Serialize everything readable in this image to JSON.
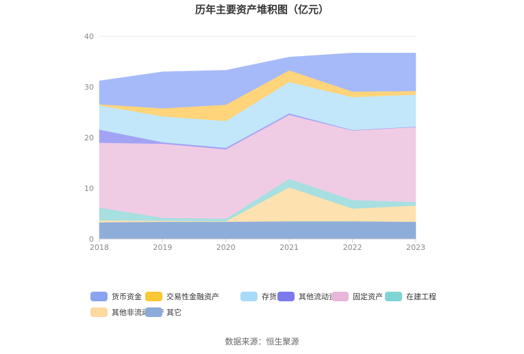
{
  "chart_data": {
    "type": "area",
    "stacked": true,
    "title": "历年主要资产堆积图（亿元）",
    "x": [
      "2018",
      "2019",
      "2020",
      "2021",
      "2022",
      "2023"
    ],
    "ylim": [
      0,
      40
    ],
    "yticks": [
      "0",
      "10",
      "20",
      "30",
      "40"
    ],
    "grid": true,
    "legend_position": "bottom",
    "series": [
      {
        "name": "其它",
        "color": "#8fadd9",
        "values": [
          3.3,
          3.4,
          3.4,
          3.5,
          3.5,
          3.4
        ]
      },
      {
        "name": "其他非流动资产",
        "color": "#fde2b0",
        "values": [
          0.4,
          0.2,
          0.1,
          6.7,
          2.5,
          3.2
        ]
      },
      {
        "name": "在建工程",
        "color": "#a8dfe0",
        "values": [
          2.5,
          0.6,
          0.5,
          1.7,
          1.7,
          0.7
        ]
      },
      {
        "name": "固定资产",
        "color": "#f0cce4",
        "values": [
          12.8,
          14.6,
          13.7,
          12.6,
          13.7,
          14.8
        ]
      },
      {
        "name": "其他流动资产",
        "color": "#a3a3f5",
        "values": [
          2.6,
          0.3,
          0.3,
          0.3,
          0.1,
          0.1
        ]
      },
      {
        "name": "存货",
        "color": "#c2e7fa",
        "values": [
          4.8,
          5.1,
          5.3,
          6.2,
          6.5,
          6.3
        ]
      },
      {
        "name": "交易性金融资产",
        "color": "#ffd47a",
        "values": [
          0.2,
          1.6,
          3.2,
          2.3,
          1.1,
          0.7
        ]
      },
      {
        "name": "货币资金",
        "color": "#a6baf9",
        "values": [
          4.6,
          7.2,
          6.8,
          2.6,
          7.6,
          7.5
        ]
      }
    ],
    "legend": [
      {
        "name": "货币资金",
        "color": "#8aa3f0"
      },
      {
        "name": "交易性金融资产",
        "color": "#fcc734"
      },
      {
        "name": "存货",
        "color": "#a6dcf7"
      },
      {
        "name": "其他流动资产",
        "color": "#7b7bee"
      },
      {
        "name": "固定资产",
        "color": "#e8b6d9"
      },
      {
        "name": "在建工程",
        "color": "#80d4d4"
      },
      {
        "name": "其他非流动资产",
        "color": "#fed9a0"
      },
      {
        "name": "其它",
        "color": "#8dabd8"
      }
    ]
  },
  "source": "数据来源：恒生聚源"
}
